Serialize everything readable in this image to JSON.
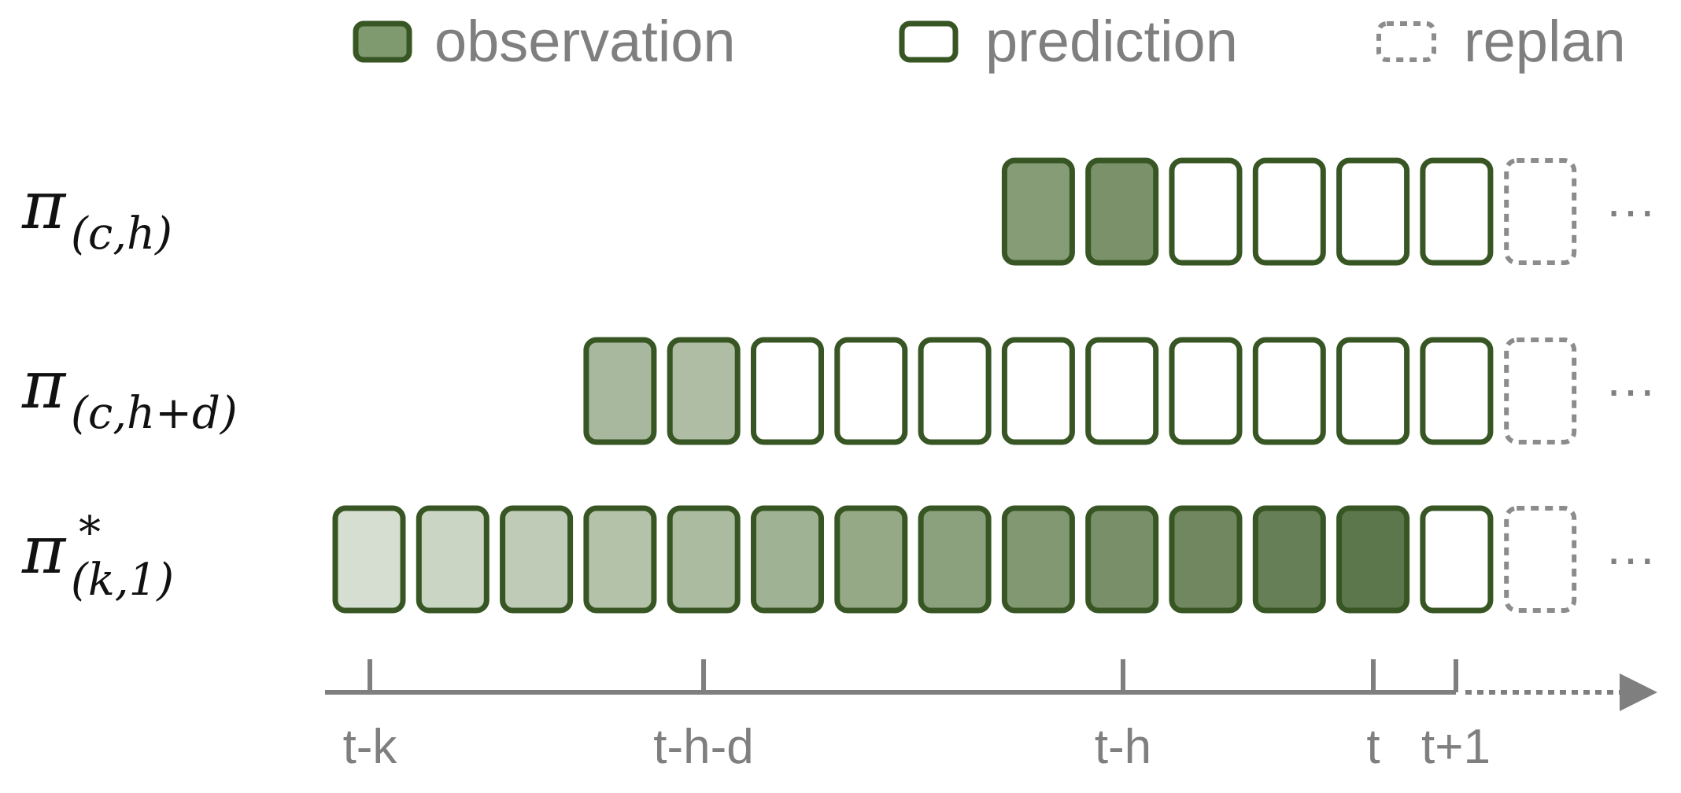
{
  "legend": {
    "observation": "observation",
    "prediction": "prediction",
    "replan": "replan"
  },
  "colors": {
    "border": "#375623",
    "axis": "#7f7f7f",
    "replan": "#8c8c8c",
    "text": "#7f7f7f",
    "legend_fill": "#7f9a6f"
  },
  "rows": [
    {
      "id": "pi-c-h",
      "symbol": "π",
      "subscript": "(c,h)",
      "superscript": "",
      "start_step": 8,
      "cells": [
        "obs",
        "obs",
        "pred",
        "pred",
        "pred",
        "pred"
      ],
      "obs_shades": [
        "#869c77",
        "#7a916a"
      ],
      "replan": true,
      "ellipsis": "···"
    },
    {
      "id": "pi-c-hd",
      "symbol": "π",
      "subscript": "(c,h+d)",
      "superscript": "",
      "start_step": 3,
      "cells": [
        "obs",
        "obs",
        "pred",
        "pred",
        "pred",
        "pred",
        "pred",
        "pred",
        "pred",
        "pred",
        "pred"
      ],
      "obs_shades": [
        "#a8b89e",
        "#aebda4"
      ],
      "replan": true,
      "ellipsis": "···"
    },
    {
      "id": "pi-star-k1",
      "symbol": "π",
      "subscript": "(k,1)",
      "superscript": "*",
      "start_step": 0,
      "cells": [
        "obs",
        "obs",
        "obs",
        "obs",
        "obs",
        "obs",
        "obs",
        "obs",
        "obs",
        "obs",
        "obs",
        "obs",
        "obs",
        "pred"
      ],
      "obs_shades": [
        "#d6ded1",
        "#cad5c4",
        "#bfcbb7",
        "#b4c2aa",
        "#aabb9f",
        "#9fb293",
        "#95a987",
        "#8ba07c",
        "#829872",
        "#798f69",
        "#70875f",
        "#677f56",
        "#5c774c"
      ],
      "replan": true,
      "ellipsis": "···"
    }
  ],
  "axis": {
    "ticks": [
      {
        "label": "t-k",
        "step": 0
      },
      {
        "label": "t-h-d",
        "step": 4
      },
      {
        "label": "t-h",
        "step": 9
      },
      {
        "label": "t",
        "step": 12
      },
      {
        "label": "t+1",
        "step": 13
      }
    ]
  }
}
